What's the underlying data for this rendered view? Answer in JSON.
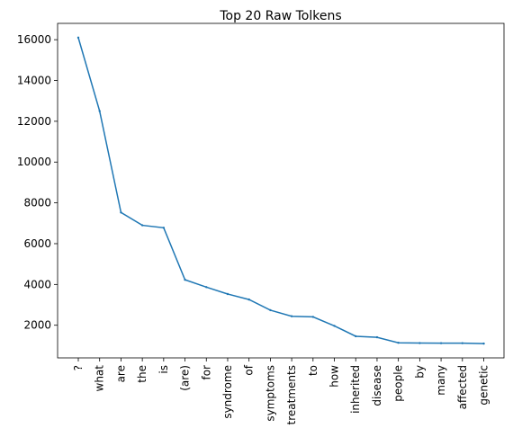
{
  "chart_data": {
    "type": "line",
    "title": "Top 20 Raw Tolkens",
    "xlabel": "",
    "ylabel": "",
    "categories": [
      "?",
      "what",
      "are",
      "the",
      "is",
      "(are)",
      "for",
      "syndrome",
      "of",
      "symptoms",
      "treatments",
      "to",
      "how",
      "inherited",
      "disease",
      "people",
      "by",
      "many",
      "affected",
      "genetic"
    ],
    "series": [
      {
        "values": [
          16100,
          12500,
          7530,
          6900,
          6780,
          4230,
          3870,
          3530,
          3260,
          2740,
          2440,
          2410,
          1970,
          1460,
          1410,
          1140,
          1125,
          1120,
          1120,
          1100
        ]
      }
    ],
    "yticks": [
      "2000",
      "4000",
      "6000",
      "8000",
      "10000",
      "12000",
      "14000",
      "16000"
    ],
    "ylim": [
      400,
      16800
    ],
    "line_color": "#1f77b4",
    "grid": false,
    "legend": false
  }
}
